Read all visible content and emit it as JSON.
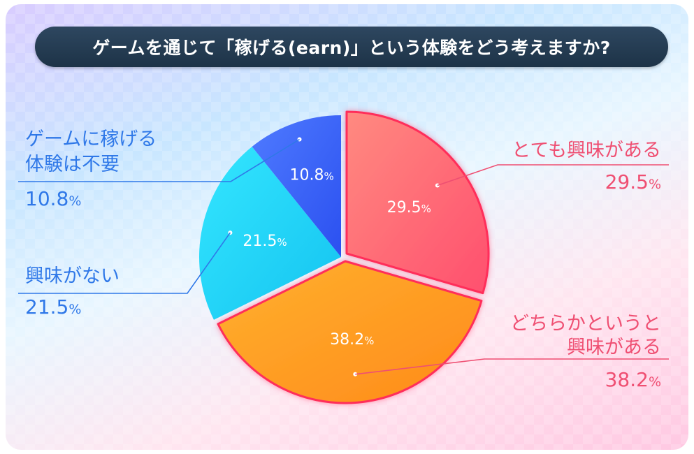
{
  "title": "ゲームを通じて「稼げる(earn)」という体験をどう考えますか?",
  "chart_data": {
    "type": "pie",
    "title": "ゲームを通じて「稼げる(earn)」という体験をどう考えますか?",
    "unit": "%",
    "slices": [
      {
        "label_lines": [
          "とても興味がある"
        ],
        "value": 29.5,
        "display": "29.5",
        "color_start": "#ff8a80",
        "color_end": "#ff4f6e"
      },
      {
        "label_lines": [
          "どちらかというと",
          "興味がある"
        ],
        "value": 38.2,
        "display": "38.2",
        "color_start": "#ffb12e",
        "color_end": "#ff8a1a"
      },
      {
        "label_lines": [
          "興味がない"
        ],
        "value": 21.5,
        "display": "21.5",
        "color_start": "#34e6ff",
        "color_end": "#14c3f0"
      },
      {
        "label_lines": [
          "ゲームに稼げる",
          "体験は不要"
        ],
        "value": 10.8,
        "display": "10.8",
        "color_start": "#4f7bff",
        "color_end": "#2b50f0"
      }
    ],
    "highlighted_slices": [
      0,
      1
    ],
    "colors": {
      "right_label": "#ef4f72",
      "left_label": "#2f78e8",
      "highlight_border": "#ff2d5a"
    }
  }
}
